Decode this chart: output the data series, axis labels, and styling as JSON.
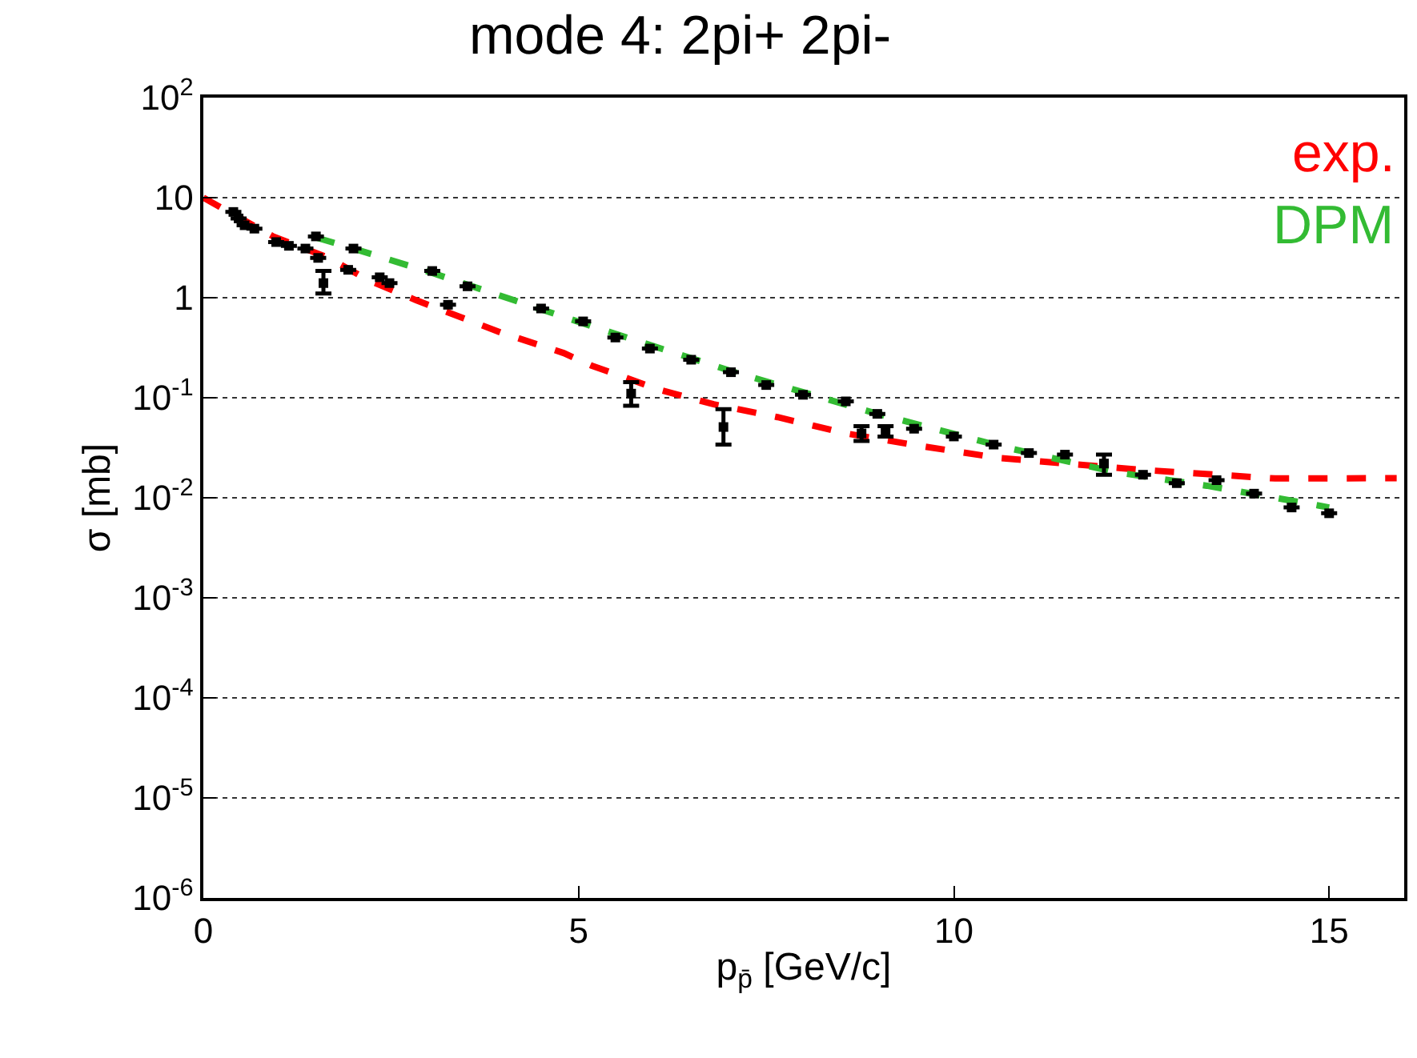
{
  "chart_data": {
    "type": "scatter",
    "title": "mode 4: 2pi+ 2pi-",
    "xlabel": "p$_{p̄}$ [GeV/c]",
    "ylabel": "σ [mb]",
    "xlim": [
      0,
      16
    ],
    "xticks": [
      0,
      5,
      10,
      15
    ],
    "ylim": [
      1e-06,
      100
    ],
    "yticks": [
      {
        "value": 1e-06,
        "label": "10$^{-6}$"
      },
      {
        "value": 1e-05,
        "label": "10$^{-5}$"
      },
      {
        "value": 0.0001,
        "label": "10$^{-4}$"
      },
      {
        "value": 0.001,
        "label": "10$^{-3}$"
      },
      {
        "value": 0.01,
        "label": "10$^{-2}$"
      },
      {
        "value": 0.1,
        "label": "10$^{-1}$"
      },
      1,
      10,
      {
        "value": 100,
        "label": "10$^{2}$"
      }
    ],
    "log": "y",
    "grid": "y",
    "legend": false,
    "series": [
      {
        "color": "#000000",
        "marker": "square",
        "x": [
          0.4,
          0.47,
          0.55,
          0.68,
          0.97,
          1.14,
          1.36,
          1.5,
          1.53,
          1.6,
          1.93,
          2.0,
          2.35,
          2.48,
          3.05,
          3.26,
          3.52,
          4.5,
          5.06,
          5.49,
          5.7,
          5.95,
          6.5,
          6.93,
          7.03,
          7.5,
          7.99,
          8.56,
          8.77,
          8.98,
          9.09,
          9.47,
          10.0,
          10.53,
          11.0,
          11.48,
          12.0,
          12.52,
          12.97,
          13.5,
          14.0,
          14.5,
          15.0
        ],
        "values": [
          7.2,
          6.2,
          5.3,
          4.9,
          3.6,
          3.3,
          3.1,
          4.1,
          2.5,
          1.4,
          1.9,
          3.1,
          1.6,
          1.4,
          1.85,
          0.85,
          1.3,
          0.78,
          0.58,
          0.4,
          0.11,
          0.31,
          0.24,
          0.051,
          0.18,
          0.134,
          0.107,
          0.092,
          0.044,
          0.069,
          0.046,
          0.049,
          0.041,
          0.034,
          0.028,
          0.027,
          0.022,
          0.017,
          0.014,
          0.015,
          0.011,
          0.008,
          0.007
        ],
        "errors": [
          null,
          null,
          null,
          null,
          null,
          null,
          null,
          null,
          null,
          [
            1.1,
            1.85
          ],
          null,
          null,
          null,
          null,
          null,
          null,
          null,
          null,
          null,
          null,
          [
            0.083,
            0.143
          ],
          null,
          null,
          [
            0.034,
            0.077
          ],
          null,
          null,
          null,
          null,
          [
            0.037,
            0.052
          ],
          null,
          [
            0.041,
            0.052
          ],
          null,
          null,
          null,
          null,
          null,
          [
            0.017,
            0.027
          ],
          null,
          null,
          null,
          null,
          null,
          null
        ]
      },
      {
        "type": "line",
        "name": "exp.",
        "color": "#ff0000",
        "line_style": "dashed",
        "x": [
          0,
          0.93,
          1.67,
          2.2,
          2.84,
          3.96,
          4.8,
          5.17,
          6.08,
          6.8,
          7.65,
          8.56,
          9.55,
          10.6,
          12.52,
          14.28,
          15.9
        ],
        "values": [
          10,
          4.1,
          2.5,
          1.5,
          0.94,
          0.45,
          0.28,
          0.21,
          0.12,
          0.086,
          0.064,
          0.044,
          0.033,
          0.025,
          0.019,
          0.0156,
          0.0157
        ]
      },
      {
        "type": "line",
        "name": "DPM",
        "color": "#33bb33",
        "line_style": "dashed",
        "x": [
          1.5,
          2.0,
          3.05,
          5.17,
          7.08,
          8.98,
          10.68,
          12.16,
          13.37,
          14.85,
          15.0
        ],
        "values": [
          4.0,
          3.1,
          1.77,
          0.52,
          0.18,
          0.069,
          0.032,
          0.018,
          0.0132,
          0.0084,
          0.008
        ]
      }
    ]
  }
}
